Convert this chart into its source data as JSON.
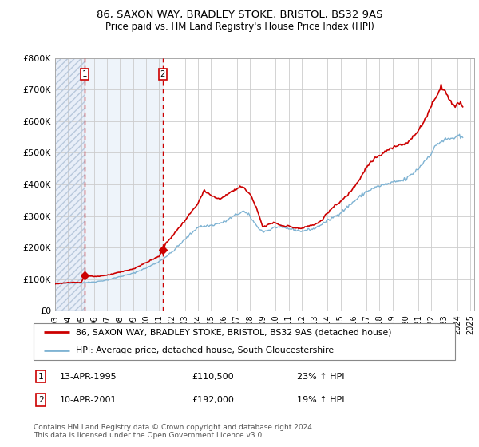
{
  "title": "86, SAXON WAY, BRADLEY STOKE, BRISTOL, BS32 9AS",
  "subtitle": "Price paid vs. HM Land Registry's House Price Index (HPI)",
  "legend_line1": "86, SAXON WAY, BRADLEY STOKE, BRISTOL, BS32 9AS (detached house)",
  "legend_line2": "HPI: Average price, detached house, South Gloucestershire",
  "transaction1_date": 1995.29,
  "transaction1_price": 110500,
  "transaction1_label": "1",
  "transaction2_date": 2001.28,
  "transaction2_price": 192000,
  "transaction2_label": "2",
  "footnote": "Contains HM Land Registry data © Crown copyright and database right 2024.\nThis data is licensed under the Open Government Licence v3.0.",
  "red_color": "#cc0000",
  "blue_color": "#7fb3d3",
  "ylim": [
    0,
    800000
  ],
  "xlim": [
    1993.0,
    2025.3
  ],
  "yticks": [
    0,
    100000,
    200000,
    300000,
    400000,
    500000,
    600000,
    700000,
    800000
  ],
  "ytick_labels": [
    "£0",
    "£100K",
    "£200K",
    "£300K",
    "£400K",
    "£500K",
    "£600K",
    "£700K",
    "£800K"
  ]
}
